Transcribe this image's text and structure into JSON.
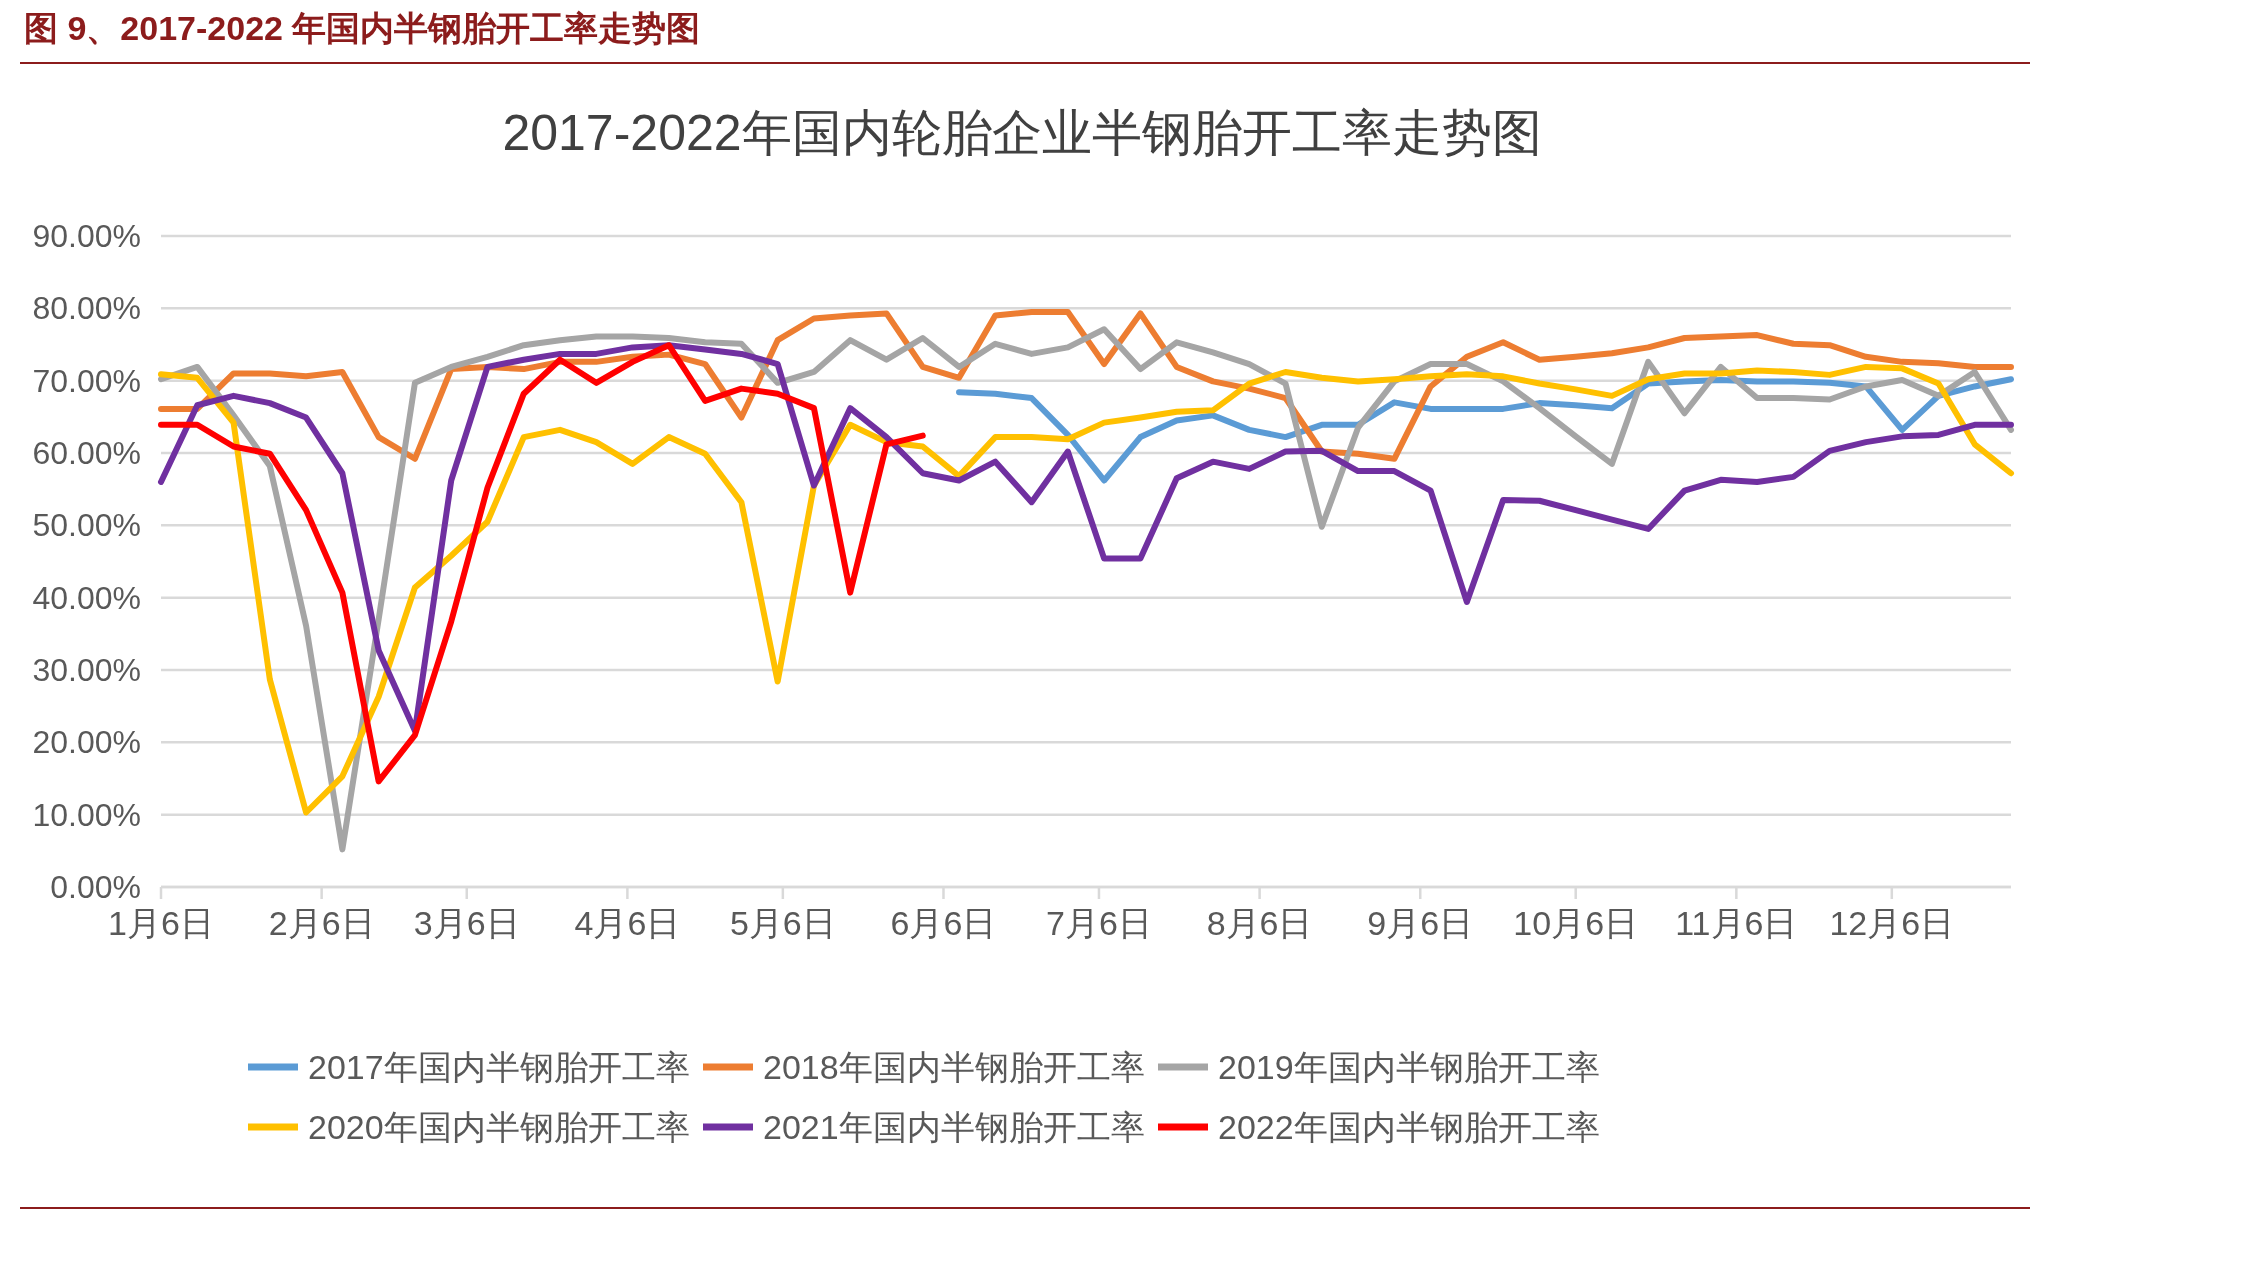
{
  "chart_data": {
    "type": "line",
    "title": "图 9、2017-2022 年国内半钢胎开工率走势图",
    "subtitle": "2017-2022年国内轮胎企业半钢胎开工率走势图",
    "x": [
      "--01-06",
      "--01-13",
      "--01-20",
      "--01-27",
      "--02-03",
      "--02-10",
      "--02-17",
      "--02-24",
      "--03-03",
      "--03-10",
      "--03-17",
      "--03-24",
      "--03-31",
      "--04-07",
      "--04-14",
      "--04-21",
      "--04-28",
      "--05-05",
      "--05-12",
      "--05-19",
      "--05-26",
      "--06-02",
      "--06-09",
      "--06-16",
      "--06-23",
      "--06-30",
      "--07-07",
      "--07-14",
      "--07-21",
      "--07-28",
      "--08-04",
      "--08-11",
      "--08-18",
      "--08-25",
      "--09-01",
      "--09-08",
      "--09-15",
      "--09-22",
      "--09-29",
      "--10-06",
      "--10-13",
      "--10-20",
      "--10-27",
      "--11-03",
      "--11-10",
      "--11-17",
      "--11-24",
      "--12-01",
      "--12-08",
      "--12-15",
      "--12-22",
      "--12-29"
    ],
    "xlim": [
      "--01-06",
      "--12-29"
    ],
    "xticks": [
      {
        "value": "--01-06",
        "label": "1月6日"
      },
      {
        "value": "--02-06",
        "label": "2月6日"
      },
      {
        "value": "--03-06",
        "label": "3月6日"
      },
      {
        "value": "--04-06",
        "label": "4月6日"
      },
      {
        "value": "--05-06",
        "label": "5月6日"
      },
      {
        "value": "--06-06",
        "label": "6月6日"
      },
      {
        "value": "--07-06",
        "label": "7月6日"
      },
      {
        "value": "--08-06",
        "label": "8月6日"
      },
      {
        "value": "--09-06",
        "label": "9月6日"
      },
      {
        "value": "--10-06",
        "label": "10月6日"
      },
      {
        "value": "--11-06",
        "label": "11月6日"
      },
      {
        "value": "--12-06",
        "label": "12月6日"
      }
    ],
    "ylim": [
      0,
      90
    ],
    "yticks": [
      {
        "value": 0,
        "label": "0.00%"
      },
      {
        "value": 10,
        "label": "10.00%"
      },
      {
        "value": 20,
        "label": "20.00%"
      },
      {
        "value": 30,
        "label": "30.00%"
      },
      {
        "value": 40,
        "label": "40.00%"
      },
      {
        "value": 50,
        "label": "50.00%"
      },
      {
        "value": 60,
        "label": "60.00%"
      },
      {
        "value": 70,
        "label": "70.00%"
      },
      {
        "value": 80,
        "label": "80.00%"
      },
      {
        "value": 90,
        "label": "90.00%"
      }
    ],
    "grid": "y",
    "legend": "bottom",
    "series": [
      {
        "name": "2017年国内半钢胎开工率",
        "color": "#5b9bd5",
        "values": [
          null,
          null,
          null,
          null,
          null,
          null,
          null,
          null,
          null,
          null,
          null,
          null,
          null,
          null,
          null,
          null,
          null,
          null,
          null,
          null,
          null,
          null,
          68.4,
          68.2,
          67.6,
          62.5,
          56.2,
          62.2,
          64.5,
          65.2,
          63.2,
          62.2,
          63.9,
          63.9,
          67.0,
          66.1,
          66.1,
          66.1,
          66.9,
          66.6,
          66.2,
          69.6,
          69.9,
          70.1,
          69.9,
          69.9,
          69.7,
          69.2,
          63.2,
          67.9,
          69.2,
          70.2
        ]
      },
      {
        "name": "2018年国内半钢胎开工率",
        "color": "#ed7d31",
        "values": [
          66.1,
          66.1,
          71.0,
          71.0,
          70.6,
          71.2,
          62.2,
          59.2,
          71.6,
          71.9,
          71.6,
          72.6,
          72.6,
          73.3,
          73.6,
          72.3,
          64.9,
          75.6,
          78.6,
          79.0,
          79.3,
          71.9,
          70.4,
          79.0,
          79.5,
          79.5,
          72.3,
          79.3,
          71.9,
          69.9,
          68.9,
          67.6,
          60.2,
          59.9,
          59.2,
          69.2,
          73.3,
          75.3,
          72.9,
          73.3,
          73.8,
          74.6,
          75.9,
          76.1,
          76.3,
          75.1,
          74.9,
          73.3,
          72.6,
          72.4,
          71.9,
          71.9
        ]
      },
      {
        "name": "2019年国内半钢胎开工率",
        "color": "#a5a5a5",
        "values": [
          70.2,
          71.9,
          65.2,
          58.2,
          36.1,
          5.2,
          37.0,
          69.7,
          71.9,
          73.3,
          74.9,
          75.6,
          76.1,
          76.1,
          75.9,
          75.3,
          75.1,
          69.7,
          71.2,
          75.6,
          72.9,
          75.9,
          71.9,
          75.1,
          73.7,
          74.6,
          77.1,
          71.6,
          75.3,
          73.9,
          72.3,
          69.6,
          49.8,
          63.5,
          69.9,
          72.3,
          72.3,
          69.9,
          66.2,
          62.3,
          58.5,
          72.6,
          65.5,
          71.9,
          67.6,
          67.6,
          67.4,
          69.2,
          70.1,
          67.9,
          71.2,
          63.2
        ]
      },
      {
        "name": "2020年国内半钢胎开工率",
        "color": "#ffc000",
        "values": [
          70.9,
          70.4,
          64.2,
          28.7,
          10.3,
          15.3,
          26.3,
          41.4,
          45.8,
          50.5,
          62.2,
          63.2,
          61.5,
          58.5,
          62.2,
          59.9,
          53.2,
          28.4,
          55.5,
          63.9,
          61.5,
          60.9,
          56.8,
          62.2,
          62.2,
          61.9,
          64.2,
          64.9,
          65.7,
          65.9,
          69.6,
          71.2,
          70.4,
          69.9,
          70.2,
          70.6,
          70.9,
          70.6,
          69.6,
          68.8,
          67.9,
          70.2,
          71.0,
          71.0,
          71.4,
          71.2,
          70.8,
          71.9,
          71.7,
          69.6,
          61.2,
          57.2
        ]
      },
      {
        "name": "2021年国内半钢胎开工率",
        "color": "#7030a0",
        "values": [
          56.0,
          66.6,
          67.9,
          66.9,
          64.9,
          57.2,
          32.7,
          21.6,
          56.2,
          71.9,
          72.9,
          73.7,
          73.7,
          74.6,
          74.9,
          74.3,
          73.7,
          72.3,
          55.5,
          66.2,
          62.2,
          57.2,
          56.2,
          58.8,
          53.2,
          60.2,
          45.4,
          45.4,
          56.5,
          58.8,
          57.8,
          60.2,
          60.3,
          57.5,
          57.5,
          54.8,
          39.4,
          53.5,
          53.4,
          52.1,
          50.8,
          49.5,
          54.8,
          56.3,
          56.0,
          56.7,
          60.3,
          61.5,
          62.3,
          62.5,
          63.9,
          63.9
        ]
      },
      {
        "name": "2022年国内半钢胎开工率",
        "color": "#ff0000",
        "values": [
          63.9,
          63.9,
          60.9,
          59.9,
          52.1,
          40.7,
          14.6,
          21.0,
          36.7,
          55.2,
          68.2,
          72.9,
          69.7,
          72.6,
          74.9,
          67.2,
          68.9,
          68.2,
          66.2,
          40.7,
          61.2,
          62.4,
          null,
          null,
          null,
          null,
          null,
          null,
          null,
          null,
          null,
          null,
          null,
          null,
          null,
          null,
          null,
          null,
          null,
          null,
          null,
          null,
          null,
          null,
          null,
          null,
          null,
          null,
          null,
          null,
          null,
          null
        ]
      }
    ]
  }
}
